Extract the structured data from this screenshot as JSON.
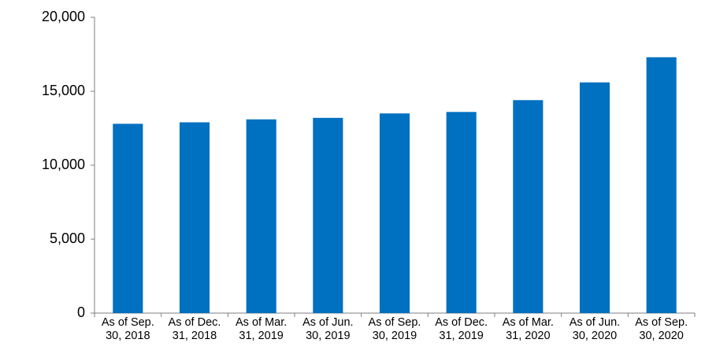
{
  "chart_data": {
    "type": "bar",
    "categories": [
      "As of Sep. 30, 2018",
      "As of Dec. 31, 2018",
      "As of Mar. 31, 2019",
      "As of Jun. 30, 2019",
      "As of Sep. 30, 2019",
      "As of Dec. 31, 2019",
      "As of Mar. 31, 2020",
      "As of Jun. 30, 2020",
      "As of Sep. 30, 2020"
    ],
    "values": [
      12800,
      12900,
      13100,
      13200,
      13500,
      13600,
      14400,
      15600,
      17300
    ],
    "color": "#0070c0",
    "ylim": [
      0,
      20000
    ],
    "yticks": [
      0,
      {
        "value": 5000,
        "label": "5,000"
      },
      {
        "value": 10000,
        "label": "10,000"
      },
      {
        "value": 15000,
        "label": "15,000"
      },
      {
        "value": 20000,
        "label": "20,000"
      }
    ],
    "grid": false
  }
}
